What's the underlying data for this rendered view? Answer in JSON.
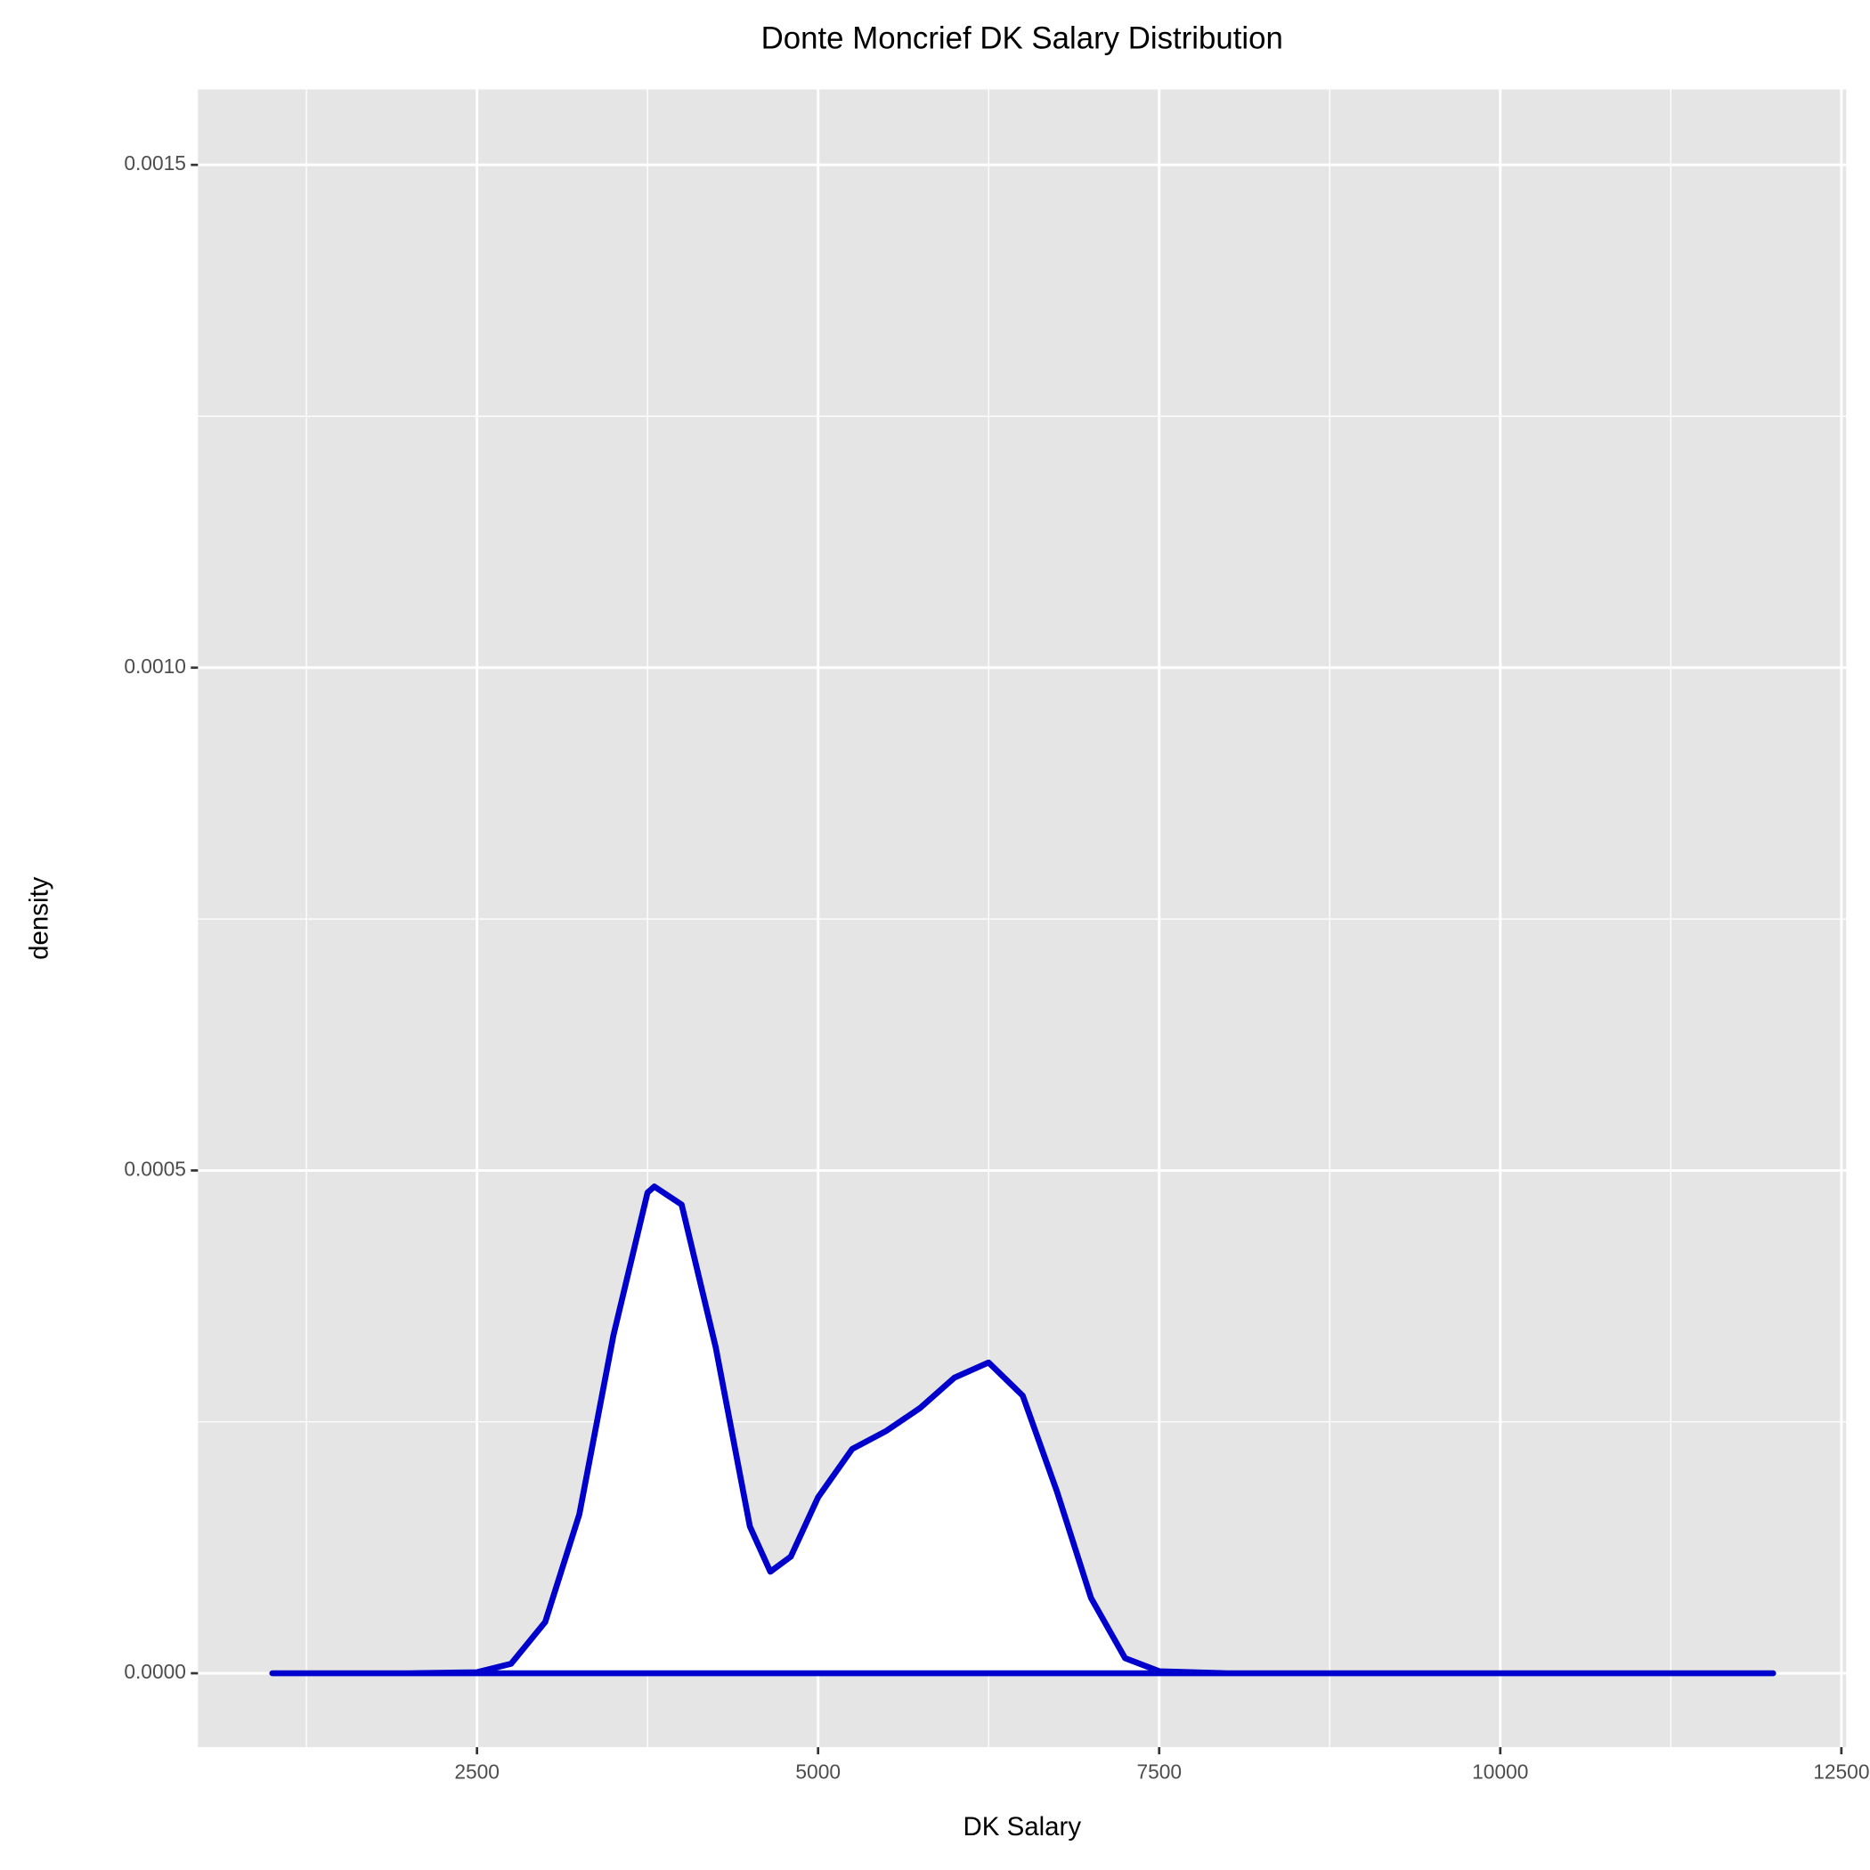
{
  "chart_data": {
    "type": "density",
    "title": "Donte Moncrief DK Salary Distribution",
    "x_label": "DK Salary",
    "y_label": "density",
    "x": [
      1000,
      2000,
      2500,
      2750,
      3000,
      3250,
      3500,
      3750,
      3800,
      4000,
      4250,
      4500,
      4650,
      4800,
      5000,
      5250,
      5500,
      5750,
      6000,
      6250,
      6500,
      6750,
      7000,
      7250,
      7500,
      8000,
      12000
    ],
    "series": [
      {
        "name": "density",
        "color": "#0000cc",
        "values": [
          0,
          0,
          1e-06,
          9.5e-06,
          5.1e-05,
          0.000158,
          0.000336,
          0.000478,
          0.000484,
          0.000466,
          0.000324,
          0.000146,
          0.000101,
          0.000116,
          0.000175,
          0.000223,
          0.000241,
          0.000264,
          0.000294,
          0.000309,
          0.000276,
          0.000181,
          7.5e-05,
          1.5e-05,
          2e-06,
          0,
          0
        ]
      }
    ],
    "fill": "#ffffff",
    "xlim": [
      455,
      12535
    ],
    "ylim": [
      -7.35e-05,
      0.001575
    ],
    "xticks": [
      2500,
      5000,
      7500,
      10000,
      12500
    ],
    "yticks": [
      {
        "value": 0,
        "label": "0.0000"
      },
      {
        "value": 0.0005,
        "label": "0.0005"
      },
      {
        "value": 0.001,
        "label": "0.0010"
      },
      {
        "value": 0.0015,
        "label": "0.0015"
      }
    ],
    "x_minor_ticks": [
      1250,
      3750,
      6250,
      8750,
      11250
    ],
    "y_minor_ticks": [
      0.00025,
      0.00075,
      0.00125
    ],
    "grid": true
  }
}
